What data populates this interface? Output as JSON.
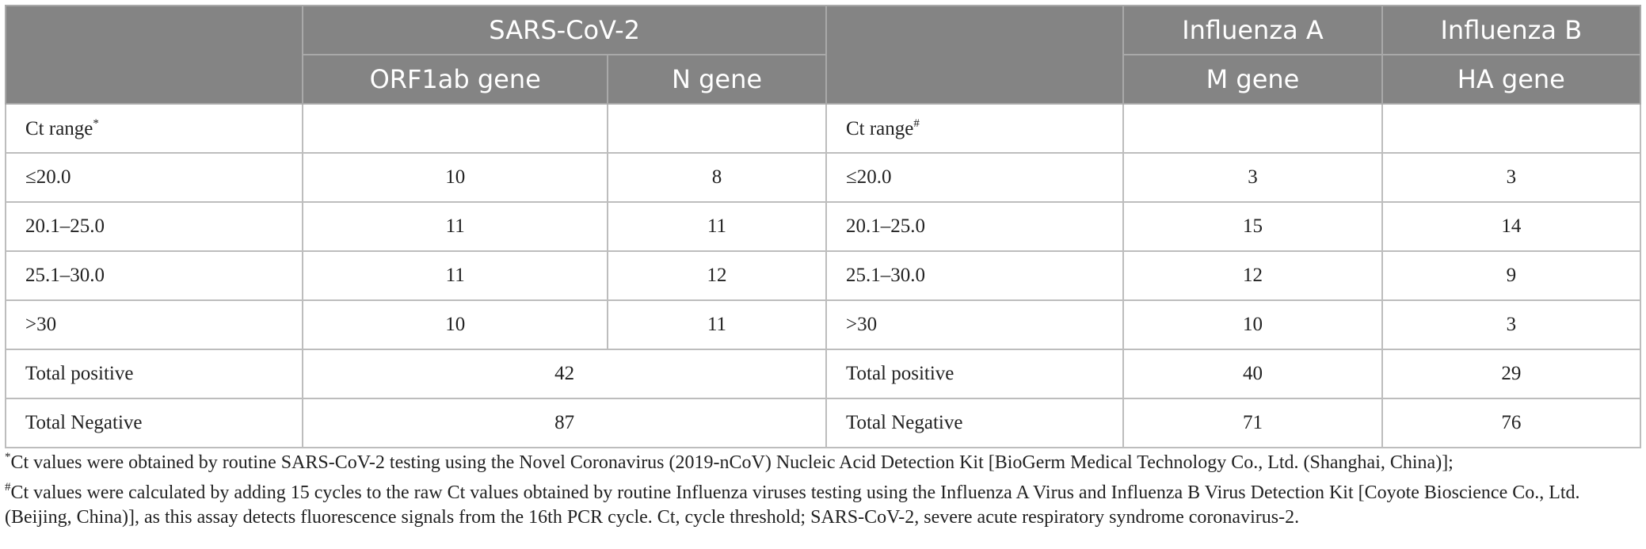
{
  "header": {
    "row1": [
      "",
      "SARS-CoV-2",
      "",
      "Influenza A",
      "Influenza B"
    ],
    "row2": [
      "",
      "ORF1ab gene",
      "N gene",
      "",
      "M gene",
      "HA gene"
    ]
  },
  "rows": [
    {
      "left_label": "Ct range",
      "left_mark": "*",
      "orf1ab": "",
      "n": "",
      "right_label": "Ct range",
      "right_mark": "#",
      "m": "",
      "ha": ""
    },
    {
      "left_label": "≤20.0",
      "orf1ab": "10",
      "n": "8",
      "right_label": "≤20.0",
      "m": "3",
      "ha": "3"
    },
    {
      "left_label": "20.1–25.0",
      "orf1ab": "11",
      "n": "11",
      "right_label": "20.1–25.0",
      "m": "15",
      "ha": "14"
    },
    {
      "left_label": "25.1–30.0",
      "orf1ab": "11",
      "n": "12",
      "right_label": "25.1–30.0",
      "m": "12",
      "ha": "9"
    },
    {
      "left_label": ">30",
      "orf1ab": "10",
      "n": "11",
      "right_label": ">30",
      "m": "10",
      "ha": "3"
    },
    {
      "left_label": "Total positive",
      "sars_total": "42",
      "right_label": "Total positive",
      "m": "40",
      "ha": "29"
    },
    {
      "left_label": "Total Negative",
      "sars_total": "87",
      "right_label": "Total Negative",
      "m": "71",
      "ha": "76"
    }
  ],
  "footnotes": [
    {
      "mark": "*",
      "text": "Ct values were obtained by routine SARS-CoV-2 testing using the Novel Coronavirus (2019-nCoV) Nucleic Acid Detection Kit [BioGerm Medical Technology Co., Ltd. (Shanghai, China)];"
    },
    {
      "mark": "#",
      "text": "Ct values were calculated by adding 15 cycles to the raw Ct values obtained by routine Influenza viruses testing using the Influenza A Virus and Influenza B Virus Detection Kit [Coyote Bioscience Co., Ltd. (Beijing, China)], as this assay detects fluorescence signals from the 16th PCR cycle. Ct, cycle threshold; SARS-CoV-2, severe acute respiratory syndrome coronavirus-2."
    }
  ]
}
